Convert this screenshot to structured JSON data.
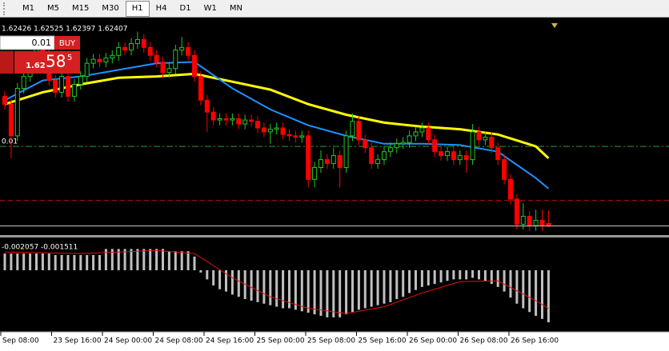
{
  "toolbar": {
    "timeframes": [
      "M1",
      "M5",
      "M15",
      "M30",
      "H1",
      "H4",
      "D1",
      "W1",
      "MN"
    ],
    "active": "H1"
  },
  "trade_panel": {
    "lots": "0.01",
    "buy": "BUY",
    "price_small": "1.62",
    "price_big": "58",
    "price_sup": "5"
  },
  "chart_data": {
    "type": "candlestick",
    "ohlc_text": "1.62426 1.62525 1.62397 1.62407",
    "up_color": "#22c822",
    "down_color": "#ff0000",
    "ylim": [
      1.6235,
      1.6395
    ],
    "ohlc": [
      [
        1.6339,
        1.6343,
        1.6329,
        1.6333
      ],
      [
        1.6333,
        1.6337,
        1.6292,
        1.6309
      ],
      [
        1.6309,
        1.6349,
        1.6305,
        1.6345
      ],
      [
        1.6345,
        1.6358,
        1.6341,
        1.6354
      ],
      [
        1.6354,
        1.6371,
        1.635,
        1.6367
      ],
      [
        1.6367,
        1.638,
        1.6363,
        1.6376
      ],
      [
        1.6376,
        1.638,
        1.6366,
        1.637
      ],
      [
        1.637,
        1.6374,
        1.6347,
        1.6351
      ],
      [
        1.6351,
        1.6355,
        1.6338,
        1.6342
      ],
      [
        1.6342,
        1.6358,
        1.6338,
        1.6354
      ],
      [
        1.6354,
        1.6358,
        1.6335,
        1.6339
      ],
      [
        1.6339,
        1.6352,
        1.6335,
        1.6348
      ],
      [
        1.6348,
        1.6358,
        1.6344,
        1.6354
      ],
      [
        1.6354,
        1.6368,
        1.635,
        1.6364
      ],
      [
        1.6364,
        1.6371,
        1.636,
        1.6367
      ],
      [
        1.6367,
        1.6371,
        1.6361,
        1.6365
      ],
      [
        1.6365,
        1.6372,
        1.6361,
        1.6368
      ],
      [
        1.6368,
        1.6374,
        1.6364,
        1.637
      ],
      [
        1.637,
        1.638,
        1.6366,
        1.6376
      ],
      [
        1.6376,
        1.638,
        1.637,
        1.6374
      ],
      [
        1.6374,
        1.6383,
        1.637,
        1.6379
      ],
      [
        1.6379,
        1.6388,
        1.6375,
        1.6382
      ],
      [
        1.6382,
        1.6386,
        1.6372,
        1.6376
      ],
      [
        1.6376,
        1.638,
        1.6366,
        1.637
      ],
      [
        1.637,
        1.6374,
        1.6361,
        1.6365
      ],
      [
        1.6365,
        1.6369,
        1.6353,
        1.6357
      ],
      [
        1.6357,
        1.6364,
        1.6353,
        1.636
      ],
      [
        1.636,
        1.6378,
        1.6356,
        1.6374
      ],
      [
        1.6374,
        1.6384,
        1.637,
        1.6376
      ],
      [
        1.6376,
        1.638,
        1.6366,
        1.637
      ],
      [
        1.637,
        1.6374,
        1.635,
        1.6354
      ],
      [
        1.6354,
        1.6358,
        1.6332,
        1.6336
      ],
      [
        1.6336,
        1.634,
        1.6312,
        1.6327
      ],
      [
        1.6327,
        1.6331,
        1.6317,
        1.6321
      ],
      [
        1.6321,
        1.6326,
        1.6317,
        1.6322
      ],
      [
        1.6322,
        1.6326,
        1.6317,
        1.6321
      ],
      [
        1.6321,
        1.6326,
        1.6317,
        1.6322
      ],
      [
        1.6322,
        1.6326,
        1.6314,
        1.6318
      ],
      [
        1.6318,
        1.6325,
        1.6314,
        1.6321
      ],
      [
        1.6321,
        1.6325,
        1.6316,
        1.632
      ],
      [
        1.632,
        1.6324,
        1.6311,
        1.6315
      ],
      [
        1.6315,
        1.6319,
        1.6308,
        1.6312
      ],
      [
        1.6312,
        1.6318,
        1.6303,
        1.6314
      ],
      [
        1.6314,
        1.6319,
        1.631,
        1.6315
      ],
      [
        1.6315,
        1.6319,
        1.6306,
        1.631
      ],
      [
        1.631,
        1.6314,
        1.6305,
        1.6309
      ],
      [
        1.6309,
        1.6313,
        1.6304,
        1.6308
      ],
      [
        1.6308,
        1.6313,
        1.6304,
        1.6309
      ],
      [
        1.6309,
        1.6313,
        1.627,
        1.6276
      ],
      [
        1.6276,
        1.6289,
        1.627,
        1.6285
      ],
      [
        1.6285,
        1.6298,
        1.6281,
        1.6291
      ],
      [
        1.6291,
        1.6295,
        1.6284,
        1.6288
      ],
      [
        1.6288,
        1.63,
        1.6284,
        1.6294
      ],
      [
        1.6294,
        1.6298,
        1.627,
        1.6285
      ],
      [
        1.6285,
        1.6313,
        1.6281,
        1.6309
      ],
      [
        1.6309,
        1.6326,
        1.6305,
        1.632
      ],
      [
        1.632,
        1.6324,
        1.6302,
        1.6306
      ],
      [
        1.6306,
        1.631,
        1.6296,
        1.63
      ],
      [
        1.63,
        1.6304,
        1.6284,
        1.6288
      ],
      [
        1.6288,
        1.6295,
        1.6284,
        1.6291
      ],
      [
        1.6291,
        1.6301,
        1.6287,
        1.6297
      ],
      [
        1.6297,
        1.6304,
        1.6293,
        1.63
      ],
      [
        1.63,
        1.6307,
        1.6296,
        1.6303
      ],
      [
        1.6303,
        1.6308,
        1.6299,
        1.6304
      ],
      [
        1.6304,
        1.6313,
        1.63,
        1.6309
      ],
      [
        1.6309,
        1.6316,
        1.6305,
        1.6312
      ],
      [
        1.6312,
        1.6319,
        1.6308,
        1.6315
      ],
      [
        1.6315,
        1.6319,
        1.6302,
        1.6306
      ],
      [
        1.6306,
        1.631,
        1.6293,
        1.6297
      ],
      [
        1.6297,
        1.6301,
        1.629,
        1.6294
      ],
      [
        1.6294,
        1.6301,
        1.629,
        1.6297
      ],
      [
        1.6297,
        1.6301,
        1.6287,
        1.6291
      ],
      [
        1.6291,
        1.6298,
        1.6287,
        1.6294
      ],
      [
        1.6294,
        1.6298,
        1.6281,
        1.6291
      ],
      [
        1.6291,
        1.6318,
        1.6287,
        1.6312
      ],
      [
        1.6312,
        1.6316,
        1.6302,
        1.6306
      ],
      [
        1.6306,
        1.6312,
        1.6302,
        1.6308
      ],
      [
        1.6308,
        1.6312,
        1.6296,
        1.63
      ],
      [
        1.63,
        1.6304,
        1.6287,
        1.6291
      ],
      [
        1.6291,
        1.6295,
        1.6272,
        1.6276
      ],
      [
        1.6276,
        1.628,
        1.6257,
        1.6261
      ],
      [
        1.6261,
        1.6265,
        1.6238,
        1.6242
      ],
      [
        1.6242,
        1.6258,
        1.6238,
        1.6248
      ],
      [
        1.6248,
        1.6252,
        1.6237,
        1.6241
      ],
      [
        1.6241,
        1.6253,
        1.6237,
        1.6245
      ],
      [
        1.6245,
        1.6253,
        1.6237,
        1.6241
      ],
      [
        1.62426,
        1.62525,
        1.62397,
        1.62407
      ]
    ],
    "ma_x": [
      0,
      6,
      12,
      18,
      24,
      30,
      36,
      42,
      48,
      54,
      60,
      66,
      72,
      78,
      84,
      86
    ],
    "ma_fast": {
      "color": "#1e90ff",
      "values": [
        1.6336,
        1.6351,
        1.6354,
        1.6359,
        1.6364,
        1.6365,
        1.6345,
        1.6329,
        1.6317,
        1.6309,
        1.6303,
        1.6303,
        1.6302,
        1.6297,
        1.6277,
        1.6269
      ]
    },
    "ma_slow": {
      "color": "#ffff00",
      "values": [
        1.6333,
        1.6342,
        1.6348,
        1.6353,
        1.6354,
        1.6356,
        1.635,
        1.6344,
        1.6333,
        1.6325,
        1.6319,
        1.6316,
        1.6314,
        1.631,
        1.6301,
        1.6292
      ]
    },
    "levels": [
      {
        "value": 1.6301,
        "color": "#2e9a2e",
        "label": "0.01"
      },
      {
        "value": 1.626,
        "color": "#d01010"
      }
    ],
    "price_line_color": "#dcc4c4",
    "x_labels": [
      "Sep 08:00",
      "23 Sep 16:00",
      "24 Sep 00:00",
      "24 Sep 08:00",
      "24 Sep 16:00",
      "25 Sep 00:00",
      "25 Sep 08:00",
      "25 Sep 16:00",
      "26 Sep 00:00",
      "26 Sep 08:00",
      "26 Sep 16:00"
    ]
  },
  "indicator": {
    "type": "macd",
    "label": "-0.002057 -0.001511",
    "ylim": [
      -0.0024,
      0.0012
    ],
    "bar_color": "#c0c0c0",
    "signal_color": "#e01010",
    "histogram": [
      0.00066,
      0.00066,
      0.00066,
      0.00066,
      0.00066,
      0.00066,
      0.00066,
      0.00066,
      0.0006,
      0.0006,
      0.0006,
      0.0006,
      0.0006,
      0.0006,
      0.0006,
      0.0006,
      0.00084,
      0.00084,
      0.00084,
      0.00084,
      0.00084,
      0.00084,
      0.00084,
      0.00084,
      0.00084,
      0.00084,
      0.00075,
      0.00075,
      0.00075,
      0.00075,
      0.00054,
      -9e-05,
      -0.00036,
      -0.0006,
      -0.00075,
      -0.00084,
      -0.00096,
      -0.00105,
      -0.00114,
      -0.0012,
      -0.00126,
      -0.00132,
      -0.00138,
      -0.00144,
      -0.0015,
      -0.0015,
      -0.00156,
      -0.00162,
      -0.00168,
      -0.00174,
      -0.0018,
      -0.00186,
      -0.00186,
      -0.00186,
      -0.00174,
      -0.00165,
      -0.00156,
      -0.0015,
      -0.00144,
      -0.00138,
      -0.00132,
      -0.00126,
      -0.00114,
      -0.00105,
      -0.0009,
      -0.00078,
      -0.00066,
      -0.0006,
      -0.00054,
      -0.00048,
      -0.00042,
      -0.00036,
      -0.00036,
      -0.00036,
      -0.0003,
      -0.00036,
      -0.00042,
      -0.00054,
      -0.00066,
      -0.00084,
      -0.00108,
      -0.00132,
      -0.0015,
      -0.00165,
      -0.0018,
      -0.00192,
      -0.002057
    ],
    "signal_x": [
      0,
      6,
      12,
      18,
      24,
      30,
      36,
      42,
      48,
      54,
      60,
      66,
      72,
      78,
      84,
      86
    ],
    "signal": [
      0.00072,
      0.00069,
      0.00066,
      0.00072,
      0.00078,
      0.00066,
      -0.0003,
      -0.00105,
      -0.0015,
      -0.00171,
      -0.00144,
      -0.0009,
      -0.00045,
      -0.00042,
      -0.0012,
      -0.001511
    ]
  }
}
